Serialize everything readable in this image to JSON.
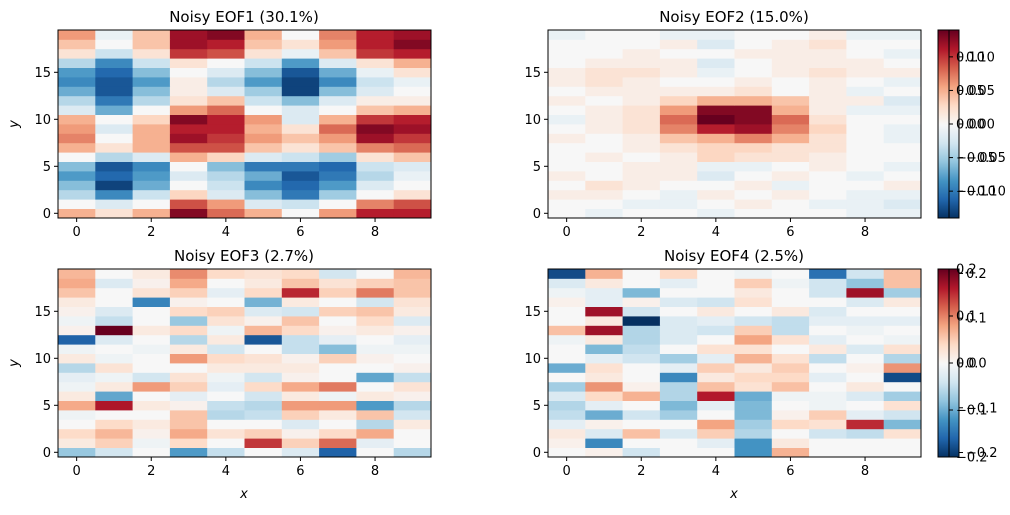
{
  "figure": {
    "colormap": "RdBu_r"
  },
  "chart_data": [
    {
      "type": "heatmap",
      "title": "Noisy EOF1 (30.1%)",
      "xlabel": "",
      "ylabel": "y",
      "nx": 10,
      "ny": 20,
      "xlim": [
        -0.5,
        9.5
      ],
      "ylim": [
        -0.5,
        19.5
      ],
      "xticks": [
        0,
        2,
        4,
        6,
        8
      ],
      "yticks": [
        0,
        5,
        10,
        15
      ],
      "xtick_labels": [
        "0",
        "2",
        "4",
        "6",
        "8"
      ],
      "ytick_labels": [
        "0",
        "5",
        "10",
        "15"
      ],
      "vmin": -0.14,
      "vmax": 0.14,
      "colorbar_ticks": [
        -0.1,
        -0.05,
        0.0,
        0.05,
        0.1
      ],
      "colorbar_tick_labels": [
        "−0.10",
        "−0.05",
        "0.00",
        "0.05",
        "0.10"
      ],
      "values": [
        [
          0.05,
          0.02,
          0.05,
          0.13,
          0.08,
          0.05,
          0.0,
          0.06,
          0.11,
          0.11
        ],
        [
          0.0,
          -0.02,
          0.0,
          0.09,
          0.06,
          -0.02,
          -0.03,
          0.0,
          0.07,
          0.09
        ],
        [
          -0.04,
          -0.09,
          -0.03,
          0.03,
          -0.02,
          -0.06,
          -0.1,
          -0.05,
          0.0,
          0.02
        ],
        [
          -0.06,
          -0.13,
          -0.07,
          0.0,
          -0.03,
          -0.09,
          -0.11,
          -0.08,
          -0.02,
          0.0
        ],
        [
          -0.08,
          -0.11,
          -0.08,
          -0.02,
          -0.04,
          -0.07,
          -0.12,
          -0.1,
          -0.04,
          -0.01
        ],
        [
          -0.06,
          -0.12,
          -0.09,
          0.0,
          -0.06,
          -0.1,
          -0.1,
          -0.11,
          -0.03,
          -0.02
        ],
        [
          0.0,
          -0.04,
          -0.02,
          0.05,
          0.03,
          -0.02,
          -0.03,
          -0.05,
          0.02,
          0.04
        ],
        [
          0.05,
          0.02,
          0.05,
          0.09,
          0.09,
          0.04,
          0.02,
          0.04,
          0.07,
          0.08
        ],
        [
          0.07,
          0.0,
          0.05,
          0.12,
          0.1,
          0.06,
          0.04,
          0.06,
          0.12,
          0.1
        ],
        [
          0.06,
          -0.02,
          0.05,
          0.11,
          0.11,
          0.05,
          0.02,
          0.08,
          0.13,
          0.12
        ],
        [
          0.05,
          0.0,
          0.03,
          0.13,
          0.11,
          0.06,
          -0.02,
          0.05,
          0.1,
          0.11
        ],
        [
          -0.02,
          -0.07,
          0.0,
          0.06,
          0.08,
          0.0,
          -0.02,
          0.0,
          0.04,
          0.05
        ],
        [
          -0.04,
          -0.1,
          -0.04,
          0.02,
          0.04,
          -0.03,
          -0.06,
          -0.02,
          0.01,
          0.01
        ],
        [
          -0.07,
          -0.12,
          -0.06,
          0.01,
          -0.02,
          -0.05,
          -0.13,
          -0.06,
          -0.02,
          0.0
        ],
        [
          -0.09,
          -0.12,
          -0.08,
          0.01,
          -0.04,
          -0.08,
          -0.13,
          -0.09,
          -0.03,
          -0.01
        ],
        [
          -0.08,
          -0.11,
          -0.06,
          0.0,
          -0.02,
          -0.06,
          -0.12,
          -0.07,
          -0.01,
          0.02
        ],
        [
          -0.04,
          -0.09,
          -0.03,
          0.02,
          0.0,
          -0.03,
          -0.08,
          -0.02,
          0.02,
          0.05
        ],
        [
          0.02,
          -0.03,
          0.02,
          0.1,
          0.09,
          0.02,
          -0.01,
          0.04,
          0.1,
          0.11
        ],
        [
          0.04,
          0.0,
          0.04,
          0.12,
          0.11,
          0.04,
          0.02,
          0.06,
          0.11,
          0.13
        ],
        [
          0.06,
          -0.01,
          0.04,
          0.12,
          0.13,
          0.05,
          0.0,
          0.07,
          0.11,
          0.12
        ]
      ]
    },
    {
      "type": "heatmap",
      "title": "Noisy EOF2 (15.0%)",
      "xlabel": "",
      "ylabel": "",
      "nx": 10,
      "ny": 20,
      "xlim": [
        -0.5,
        9.5
      ],
      "ylim": [
        -0.5,
        19.5
      ],
      "xticks": [
        0,
        2,
        4,
        6,
        8
      ],
      "yticks": [
        0,
        5,
        10,
        15
      ],
      "xtick_labels": [
        "0",
        "2",
        "4",
        "6",
        "8"
      ],
      "ytick_labels": [
        "0",
        "5",
        "10",
        "15"
      ],
      "vmin": -0.14,
      "vmax": 0.14,
      "colorbar_ticks": [
        -0.1,
        -0.05,
        0.0,
        0.05,
        0.1
      ],
      "colorbar_tick_labels": [
        "−0.10",
        "−0.05",
        "0.00",
        "0.05",
        "0.10"
      ],
      "values": [
        [
          0.0,
          -0.01,
          0.0,
          0.0,
          -0.01,
          0.0,
          0.0,
          0.0,
          -0.01,
          -0.01
        ],
        [
          0.0,
          0.0,
          -0.01,
          -0.01,
          0.0,
          0.01,
          0.0,
          -0.01,
          -0.01,
          -0.02
        ],
        [
          0.01,
          0.01,
          0.0,
          -0.01,
          0.01,
          0.0,
          0.01,
          0.0,
          -0.01,
          -0.01
        ],
        [
          0.0,
          0.02,
          0.01,
          0.0,
          0.0,
          0.01,
          -0.01,
          0.0,
          0.0,
          0.01
        ],
        [
          0.01,
          0.0,
          0.01,
          0.01,
          -0.02,
          0.0,
          0.01,
          0.0,
          -0.01,
          0.0
        ],
        [
          0.0,
          0.0,
          0.01,
          0.01,
          -0.01,
          -0.01,
          0.0,
          0.01,
          0.0,
          -0.01
        ],
        [
          0.0,
          0.01,
          0.0,
          0.01,
          0.03,
          0.02,
          0.02,
          0.01,
          0.0,
          0.0
        ],
        [
          0.0,
          0.0,
          0.01,
          0.02,
          0.03,
          0.03,
          0.02,
          0.02,
          0.0,
          0.0
        ],
        [
          0.01,
          0.0,
          0.01,
          0.04,
          0.05,
          0.07,
          0.05,
          0.02,
          0.0,
          -0.01
        ],
        [
          0.0,
          0.01,
          0.02,
          0.07,
          0.11,
          0.12,
          0.07,
          0.03,
          0.0,
          -0.01
        ],
        [
          -0.01,
          0.01,
          0.02,
          0.08,
          0.14,
          0.13,
          0.08,
          0.02,
          0.0,
          0.0
        ],
        [
          0.0,
          0.01,
          0.02,
          0.06,
          0.13,
          0.13,
          0.05,
          0.01,
          -0.01,
          -0.01
        ],
        [
          0.01,
          0.0,
          0.01,
          0.03,
          0.05,
          0.05,
          0.04,
          0.01,
          0.01,
          -0.02
        ],
        [
          0.0,
          0.01,
          0.01,
          0.01,
          0.01,
          0.02,
          0.0,
          0.01,
          -0.01,
          0.0
        ],
        [
          0.01,
          0.02,
          0.01,
          0.0,
          0.0,
          0.01,
          0.0,
          0.01,
          0.0,
          -0.01
        ],
        [
          0.01,
          0.02,
          0.02,
          0.01,
          -0.01,
          0.0,
          0.01,
          0.02,
          0.01,
          0.01
        ],
        [
          0.0,
          0.01,
          0.01,
          0.01,
          -0.02,
          0.0,
          0.01,
          0.01,
          0.01,
          0.0
        ],
        [
          0.0,
          0.0,
          0.01,
          0.0,
          0.0,
          0.01,
          0.01,
          0.01,
          0.0,
          -0.01
        ],
        [
          0.0,
          0.0,
          0.0,
          0.01,
          -0.02,
          0.0,
          0.01,
          0.02,
          0.0,
          0.0
        ],
        [
          -0.01,
          0.0,
          0.0,
          -0.01,
          -0.01,
          0.0,
          0.0,
          0.01,
          -0.01,
          -0.01
        ]
      ]
    },
    {
      "type": "heatmap",
      "title": "Noisy EOF3 (2.7%)",
      "xlabel": "x",
      "ylabel": "y",
      "nx": 10,
      "ny": 20,
      "xlim": [
        -0.5,
        9.5
      ],
      "ylim": [
        -0.5,
        19.5
      ],
      "xticks": [
        0,
        2,
        4,
        6,
        8
      ],
      "yticks": [
        0,
        5,
        10,
        15
      ],
      "xtick_labels": [
        "0",
        "2",
        "4",
        "6",
        "8"
      ],
      "ytick_labels": [
        "0",
        "5",
        "10",
        "15"
      ],
      "vmin": -0.21,
      "vmax": 0.21,
      "colorbar_ticks": [
        -0.2,
        -0.1,
        0.0,
        0.1,
        0.2
      ],
      "colorbar_tick_labels": [
        "−0.2",
        "−0.1",
        "0.0",
        "0.1",
        "0.2"
      ],
      "values": [
        [
          -0.08,
          -0.04,
          0.0,
          -0.12,
          -0.05,
          0.0,
          -0.03,
          -0.17,
          0.0,
          -0.06
        ],
        [
          0.02,
          0.05,
          -0.01,
          0.04,
          0.0,
          0.15,
          0.05,
          0.12,
          -0.02,
          0.0
        ],
        [
          0.04,
          0.07,
          0.01,
          0.08,
          0.03,
          0.05,
          0.01,
          0.04,
          0.08,
          0.0
        ],
        [
          0.0,
          0.04,
          0.02,
          0.06,
          0.0,
          0.0,
          -0.03,
          0.0,
          -0.06,
          0.02
        ],
        [
          -0.01,
          0.0,
          0.0,
          0.06,
          -0.06,
          -0.05,
          0.05,
          0.02,
          0.06,
          -0.04
        ],
        [
          0.08,
          0.17,
          0.02,
          0.01,
          -0.05,
          -0.06,
          0.09,
          0.09,
          -0.12,
          -0.06
        ],
        [
          0.02,
          -0.11,
          0.0,
          -0.02,
          0.0,
          -0.04,
          0.02,
          -0.01,
          0.02,
          0.01
        ],
        [
          -0.01,
          0.02,
          0.09,
          0.05,
          -0.02,
          0.04,
          0.08,
          0.11,
          0.0,
          0.03
        ],
        [
          -0.02,
          -0.01,
          -0.04,
          0.03,
          -0.01,
          -0.04,
          0.01,
          0.0,
          -0.11,
          -0.05
        ],
        [
          -0.06,
          0.03,
          0.0,
          0.0,
          0.02,
          0.02,
          0.02,
          0.0,
          0.0,
          0.01
        ],
        [
          0.02,
          -0.01,
          0.0,
          0.09,
          0.04,
          0.03,
          0.01,
          0.05,
          0.01,
          0.0
        ],
        [
          -0.01,
          0.0,
          -0.01,
          0.02,
          -0.04,
          0.0,
          -0.05,
          -0.09,
          -0.01,
          -0.01
        ],
        [
          -0.17,
          -0.03,
          0.0,
          -0.06,
          0.02,
          -0.18,
          -0.05,
          -0.02,
          0.0,
          -0.02
        ],
        [
          0.01,
          0.21,
          0.02,
          0.04,
          -0.01,
          0.07,
          0.04,
          0.01,
          0.02,
          0.01
        ],
        [
          -0.01,
          -0.05,
          0.0,
          -0.08,
          0.03,
          0.01,
          0.06,
          0.0,
          0.04,
          -0.03
        ],
        [
          0.01,
          -0.03,
          0.0,
          0.04,
          0.05,
          -0.03,
          -0.04,
          0.05,
          0.06,
          0.02
        ],
        [
          0.02,
          0.0,
          -0.14,
          0.01,
          0.0,
          -0.1,
          0.02,
          0.0,
          -0.04,
          0.03
        ],
        [
          0.06,
          0.0,
          0.03,
          0.05,
          -0.02,
          0.04,
          0.16,
          0.05,
          0.11,
          0.06
        ],
        [
          0.08,
          -0.03,
          0.01,
          0.08,
          0.0,
          0.02,
          0.06,
          0.03,
          0.05,
          0.06
        ],
        [
          0.07,
          0.0,
          0.02,
          0.1,
          0.04,
          0.03,
          0.04,
          -0.04,
          0.0,
          0.07
        ]
      ]
    },
    {
      "type": "heatmap",
      "title": "Noisy EOF4 (2.5%)",
      "xlabel": "x",
      "ylabel": "",
      "nx": 10,
      "ny": 20,
      "xlim": [
        -0.5,
        9.5
      ],
      "ylim": [
        -0.5,
        19.5
      ],
      "xticks": [
        0,
        2,
        4,
        6,
        8
      ],
      "yticks": [
        0,
        5,
        10,
        15
      ],
      "xtick_labels": [
        "0",
        "2",
        "4",
        "6",
        "8"
      ],
      "ytick_labels": [
        "0",
        "5",
        "10",
        "15"
      ],
      "vmin": -0.2,
      "vmax": 0.2,
      "colorbar_ticks": [
        -0.2,
        -0.1,
        0.0,
        0.1,
        0.2
      ],
      "colorbar_tick_labels": [
        "−0.2",
        "−0.1",
        "0.0",
        "0.1",
        "0.2"
      ],
      "values": [
        [
          0.0,
          0.01,
          -0.04,
          0.0,
          0.0,
          -0.12,
          0.07,
          0.0,
          0.0,
          0.0
        ],
        [
          0.01,
          -0.13,
          0.0,
          0.0,
          -0.02,
          -0.12,
          0.02,
          0.0,
          0.0,
          0.0
        ],
        [
          0.02,
          -0.03,
          0.06,
          -0.03,
          0.05,
          -0.06,
          0.0,
          -0.04,
          -0.05,
          0.03
        ],
        [
          -0.02,
          0.01,
          0.0,
          0.0,
          0.08,
          -0.07,
          0.04,
          0.03,
          0.15,
          -0.09
        ],
        [
          -0.05,
          -0.1,
          -0.04,
          -0.07,
          0.0,
          -0.09,
          0.01,
          0.05,
          -0.02,
          -0.04
        ],
        [
          -0.06,
          -0.02,
          0.0,
          -0.09,
          -0.02,
          -0.09,
          0.0,
          -0.01,
          0.0,
          0.03
        ],
        [
          -0.03,
          0.04,
          0.07,
          -0.06,
          0.16,
          -0.1,
          -0.01,
          -0.01,
          -0.03,
          -0.07
        ],
        [
          -0.07,
          0.09,
          0.01,
          -0.06,
          0.06,
          0.03,
          0.06,
          0.0,
          0.02,
          0.0
        ],
        [
          0.0,
          0.02,
          0.0,
          -0.13,
          0.02,
          0.04,
          0.04,
          -0.02,
          0.0,
          -0.18
        ],
        [
          -0.1,
          0.03,
          0.0,
          -0.02,
          0.05,
          0.02,
          0.05,
          0.0,
          0.01,
          0.09
        ],
        [
          0.0,
          -0.02,
          -0.04,
          -0.07,
          -0.02,
          0.07,
          0.03,
          -0.05,
          0.0,
          -0.06
        ],
        [
          0.0,
          -0.09,
          -0.05,
          0.0,
          0.03,
          0.03,
          0.0,
          0.02,
          -0.03,
          0.03
        ],
        [
          -0.01,
          0.02,
          -0.06,
          -0.03,
          0.0,
          0.08,
          0.03,
          -0.02,
          0.0,
          -0.01
        ],
        [
          0.06,
          0.17,
          -0.06,
          -0.03,
          -0.04,
          0.05,
          -0.05,
          0.0,
          -0.01,
          0.0
        ],
        [
          0.0,
          0.02,
          -0.2,
          -0.03,
          -0.02,
          -0.04,
          -0.05,
          -0.02,
          -0.02,
          -0.02
        ],
        [
          0.0,
          0.17,
          -0.04,
          0.0,
          0.02,
          0.0,
          0.02,
          -0.03,
          0.0,
          0.0
        ],
        [
          0.01,
          -0.02,
          0.01,
          -0.03,
          -0.04,
          0.03,
          0.0,
          0.0,
          -0.03,
          0.02
        ],
        [
          -0.01,
          -0.02,
          -0.09,
          0.0,
          0.0,
          0.02,
          0.0,
          -0.04,
          0.17,
          -0.07
        ],
        [
          -0.03,
          0.02,
          0.0,
          -0.02,
          0.0,
          0.05,
          -0.01,
          -0.04,
          -0.08,
          0.06
        ],
        [
          -0.18,
          0.07,
          0.0,
          0.04,
          0.0,
          -0.01,
          0.0,
          -0.15,
          -0.04,
          0.06
        ]
      ]
    }
  ]
}
